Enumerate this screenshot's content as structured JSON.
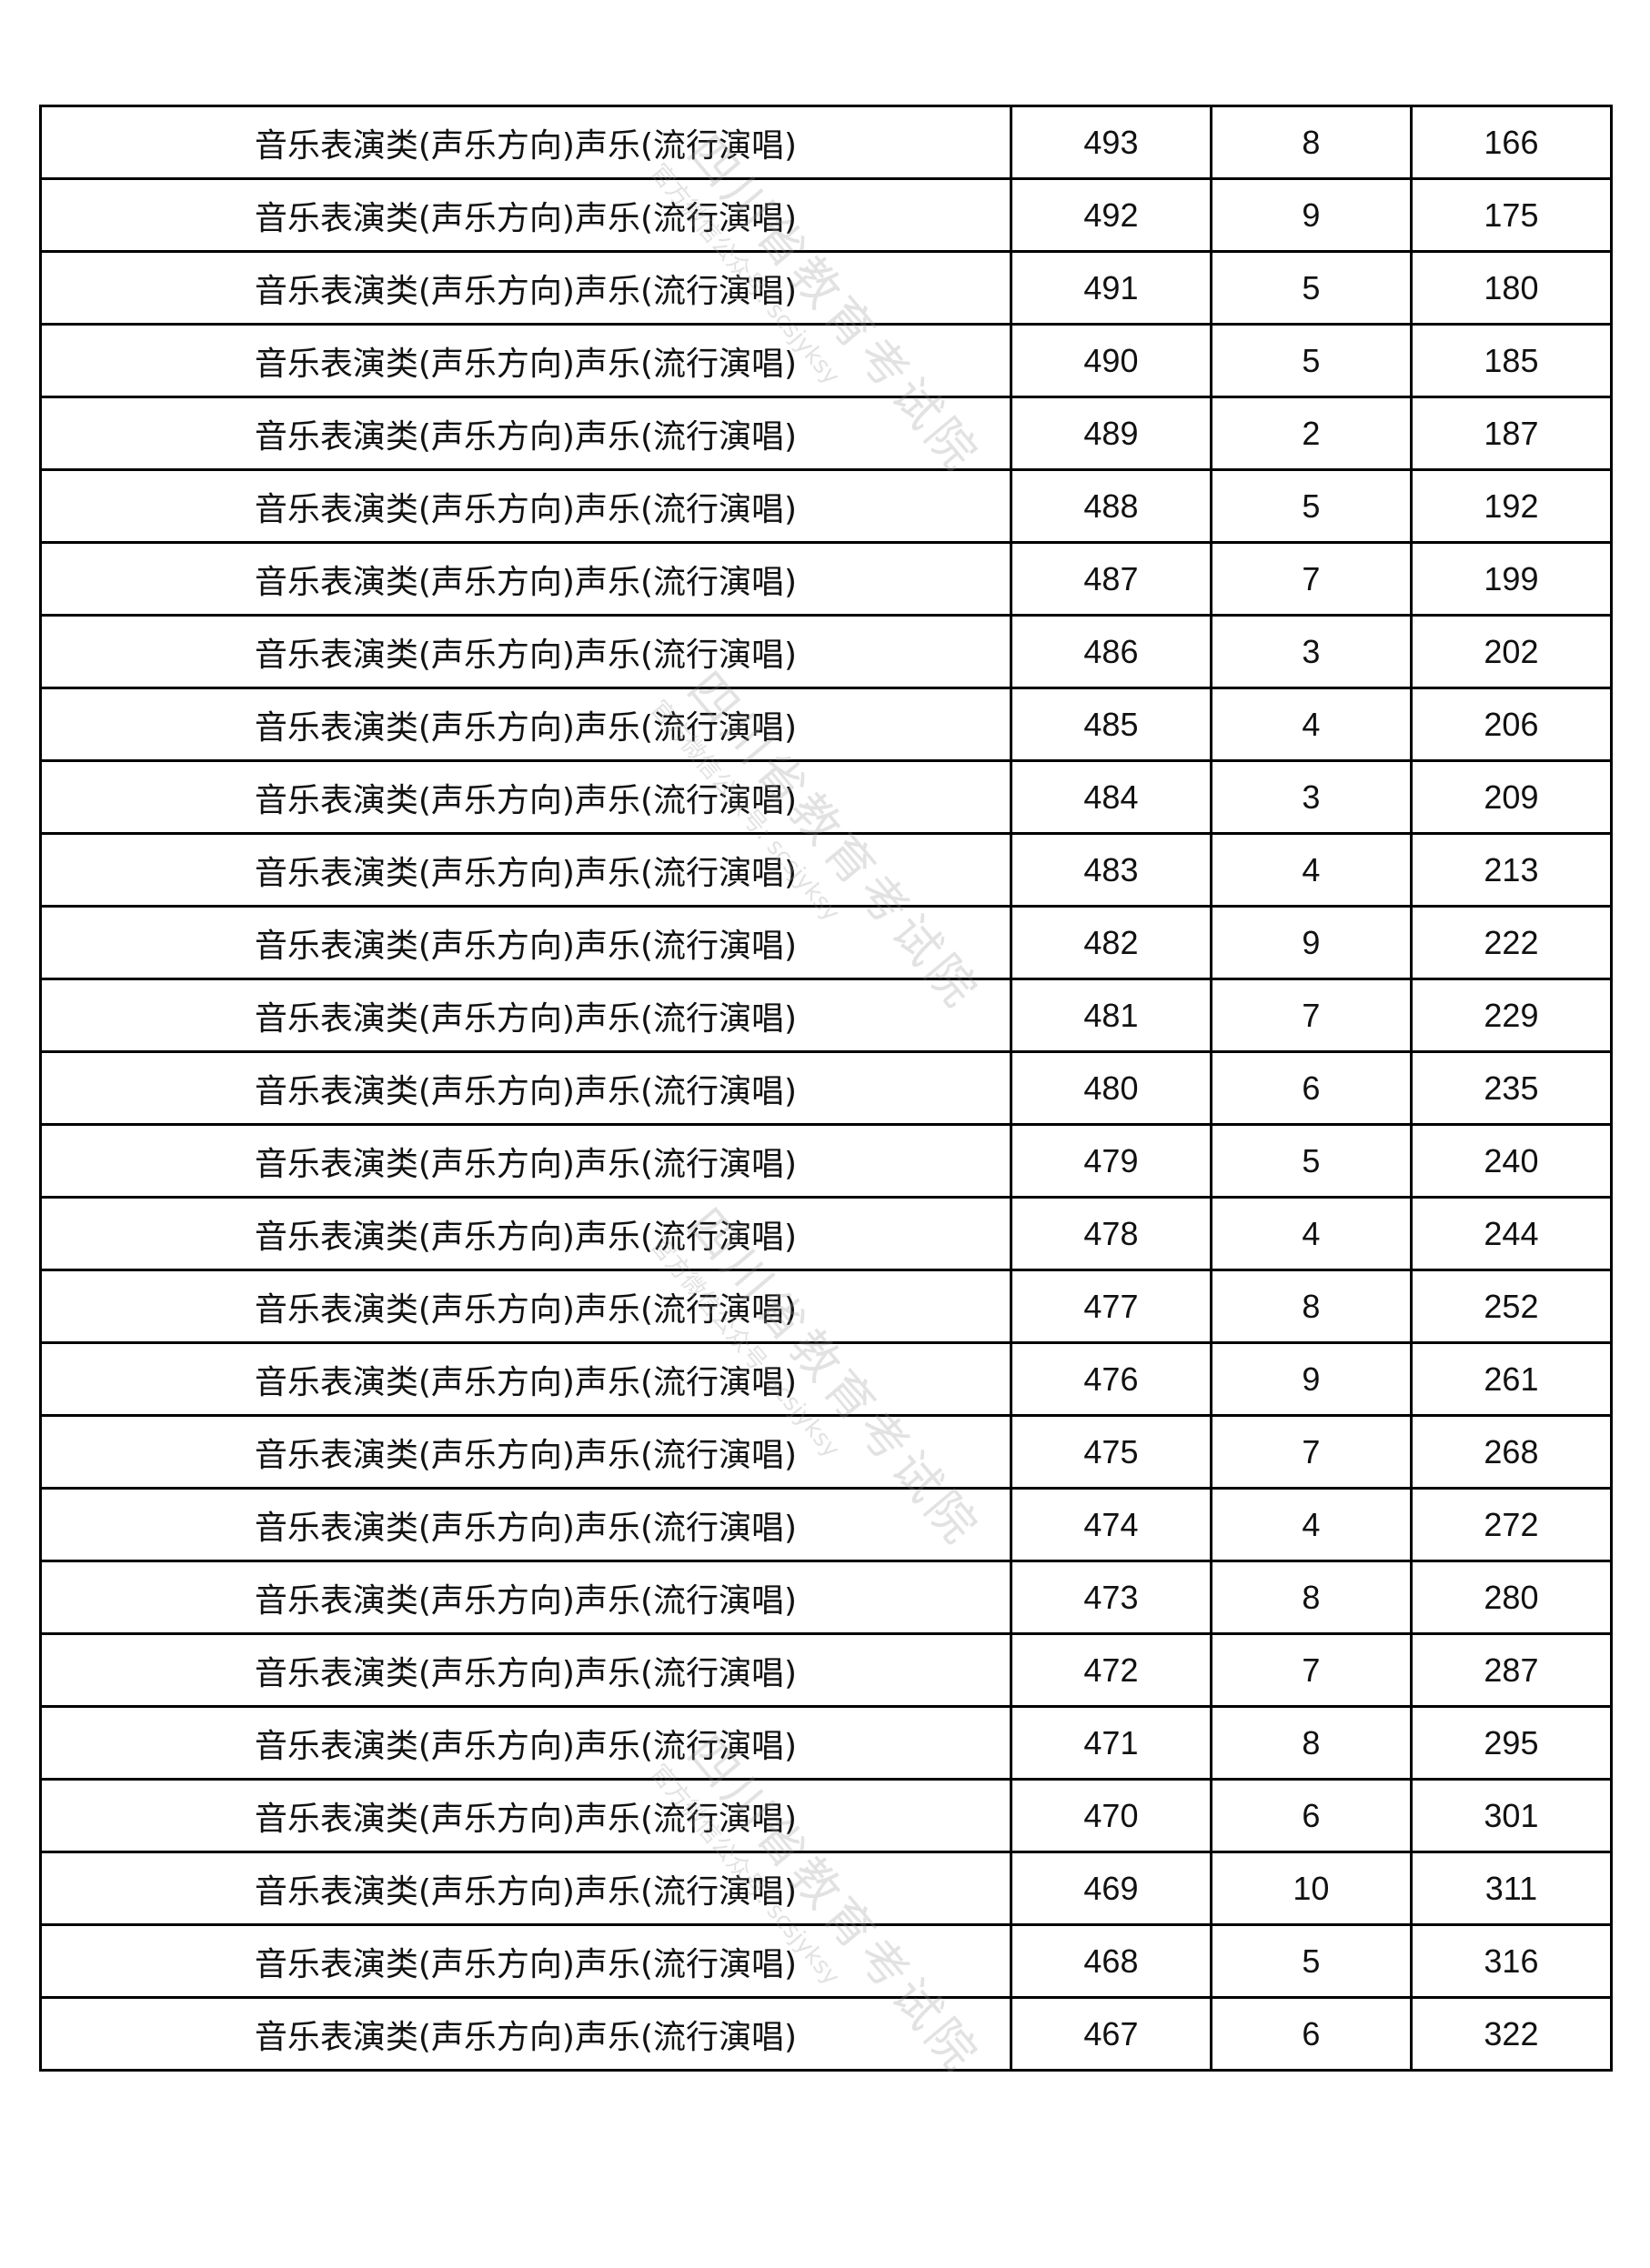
{
  "watermark": {
    "title": "四川省教育考试院",
    "subtitle": "官方微信公众号: scsjyksy"
  },
  "rows": [
    [
      "音乐表演类(声乐方向)声乐(流行演唱)",
      "493",
      "8",
      "166"
    ],
    [
      "音乐表演类(声乐方向)声乐(流行演唱)",
      "492",
      "9",
      "175"
    ],
    [
      "音乐表演类(声乐方向)声乐(流行演唱)",
      "491",
      "5",
      "180"
    ],
    [
      "音乐表演类(声乐方向)声乐(流行演唱)",
      "490",
      "5",
      "185"
    ],
    [
      "音乐表演类(声乐方向)声乐(流行演唱)",
      "489",
      "2",
      "187"
    ],
    [
      "音乐表演类(声乐方向)声乐(流行演唱)",
      "488",
      "5",
      "192"
    ],
    [
      "音乐表演类(声乐方向)声乐(流行演唱)",
      "487",
      "7",
      "199"
    ],
    [
      "音乐表演类(声乐方向)声乐(流行演唱)",
      "486",
      "3",
      "202"
    ],
    [
      "音乐表演类(声乐方向)声乐(流行演唱)",
      "485",
      "4",
      "206"
    ],
    [
      "音乐表演类(声乐方向)声乐(流行演唱)",
      "484",
      "3",
      "209"
    ],
    [
      "音乐表演类(声乐方向)声乐(流行演唱)",
      "483",
      "4",
      "213"
    ],
    [
      "音乐表演类(声乐方向)声乐(流行演唱)",
      "482",
      "9",
      "222"
    ],
    [
      "音乐表演类(声乐方向)声乐(流行演唱)",
      "481",
      "7",
      "229"
    ],
    [
      "音乐表演类(声乐方向)声乐(流行演唱)",
      "480",
      "6",
      "235"
    ],
    [
      "音乐表演类(声乐方向)声乐(流行演唱)",
      "479",
      "5",
      "240"
    ],
    [
      "音乐表演类(声乐方向)声乐(流行演唱)",
      "478",
      "4",
      "244"
    ],
    [
      "音乐表演类(声乐方向)声乐(流行演唱)",
      "477",
      "8",
      "252"
    ],
    [
      "音乐表演类(声乐方向)声乐(流行演唱)",
      "476",
      "9",
      "261"
    ],
    [
      "音乐表演类(声乐方向)声乐(流行演唱)",
      "475",
      "7",
      "268"
    ],
    [
      "音乐表演类(声乐方向)声乐(流行演唱)",
      "474",
      "4",
      "272"
    ],
    [
      "音乐表演类(声乐方向)声乐(流行演唱)",
      "473",
      "8",
      "280"
    ],
    [
      "音乐表演类(声乐方向)声乐(流行演唱)",
      "472",
      "7",
      "287"
    ],
    [
      "音乐表演类(声乐方向)声乐(流行演唱)",
      "471",
      "8",
      "295"
    ],
    [
      "音乐表演类(声乐方向)声乐(流行演唱)",
      "470",
      "6",
      "301"
    ],
    [
      "音乐表演类(声乐方向)声乐(流行演唱)",
      "469",
      "10",
      "311"
    ],
    [
      "音乐表演类(声乐方向)声乐(流行演唱)",
      "468",
      "5",
      "316"
    ],
    [
      "音乐表演类(声乐方向)声乐(流行演唱)",
      "467",
      "6",
      "322"
    ]
  ]
}
